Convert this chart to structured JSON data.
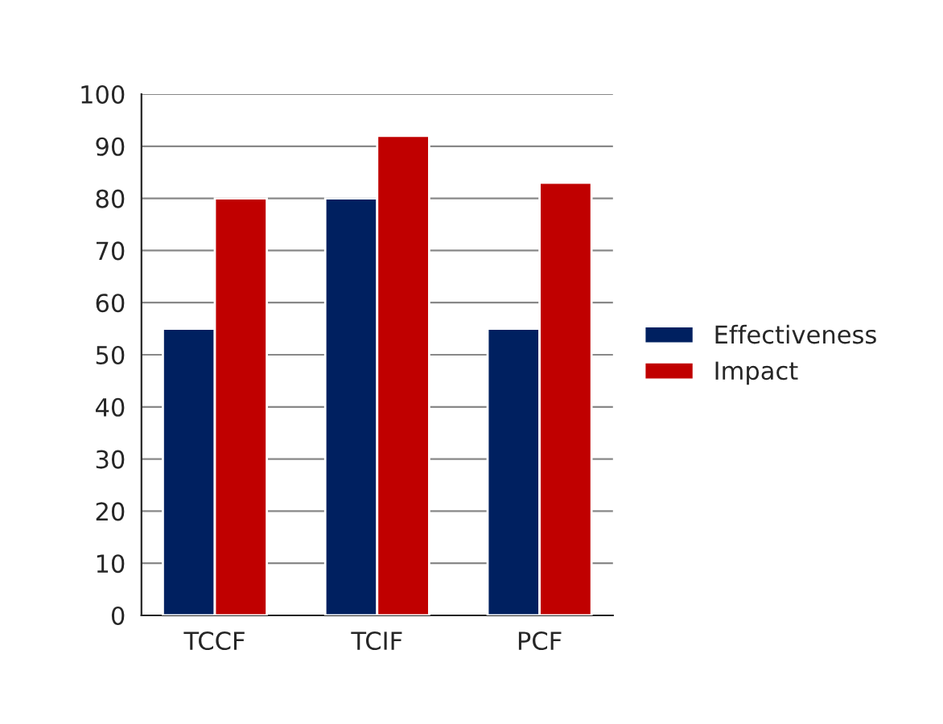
{
  "chart_data": {
    "type": "bar",
    "categories": [
      "TCCF",
      "TCIF",
      "PCF"
    ],
    "series": [
      {
        "name": "Effectiveness",
        "color": "#002060",
        "values": [
          55,
          80,
          55
        ]
      },
      {
        "name": "Impact",
        "color": "#c00000",
        "values": [
          80,
          92,
          83
        ]
      }
    ],
    "ylim": [
      0,
      100
    ],
    "yticks": [
      0,
      10,
      20,
      30,
      40,
      50,
      60,
      70,
      80,
      90,
      100
    ],
    "grid": "y",
    "legend": "right"
  }
}
